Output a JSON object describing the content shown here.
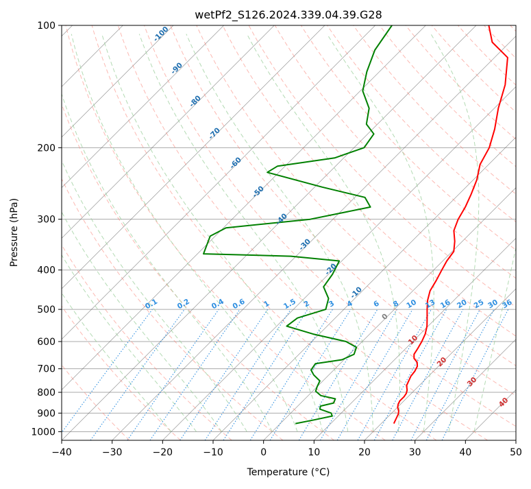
{
  "chart_data": {
    "type": "line",
    "diagram": "skew-T log-P",
    "title": "wetPf2_S126.2024.339.04.39.G28",
    "xlabel": "Temperature (°C)",
    "ylabel": "Pressure (hPa)",
    "xlim": [
      -40,
      50
    ],
    "ylim": [
      1050,
      100
    ],
    "y_scale": "log",
    "grid": true,
    "x_ticks": [
      -40,
      -30,
      -20,
      -10,
      0,
      10,
      20,
      30,
      40,
      50
    ],
    "x_tick_labels": [
      "−40",
      "−30",
      "−20",
      "−10",
      "0",
      "10",
      "20",
      "30",
      "40",
      "50"
    ],
    "y_ticks": [
      1000,
      900,
      800,
      700,
      600,
      500,
      400,
      300,
      200,
      100
    ],
    "y_tick_labels": [
      "1000",
      "900",
      "800",
      "700",
      "600",
      "500",
      "400",
      "300",
      "200",
      "100"
    ],
    "colors": {
      "temperature": "#ff0000",
      "dewpoint": "#008000",
      "dry_adiabat": "#fa8072",
      "moist_adiabat": "#9acd99",
      "mixing_ratio": "#1f77b4",
      "isotherm": "#555555",
      "isobar": "#aaaaaa",
      "frame": "#000000"
    },
    "series": [
      {
        "name": "temperature",
        "points": [
          [
            22.5,
            955
          ],
          [
            22.2,
            940
          ],
          [
            21.8,
            920
          ],
          [
            21.5,
            905
          ],
          [
            21.0,
            890
          ],
          [
            20.0,
            870
          ],
          [
            19.5,
            855
          ],
          [
            19.2,
            840
          ],
          [
            19.2,
            820
          ],
          [
            19.0,
            805
          ],
          [
            18.5,
            790
          ],
          [
            17.5,
            770
          ],
          [
            17.0,
            750
          ],
          [
            16.5,
            730
          ],
          [
            16.3,
            710
          ],
          [
            15.8,
            690
          ],
          [
            15.0,
            675
          ],
          [
            13.6,
            660
          ],
          [
            12.8,
            645
          ],
          [
            12.4,
            625
          ],
          [
            11.8,
            600
          ],
          [
            11.0,
            575
          ],
          [
            9.8,
            550
          ],
          [
            8.2,
            525
          ],
          [
            6.5,
            500
          ],
          [
            4.8,
            475
          ],
          [
            3.4,
            450
          ],
          [
            2.6,
            425
          ],
          [
            1.6,
            400
          ],
          [
            0.8,
            380
          ],
          [
            0.3,
            360
          ],
          [
            -1.5,
            340
          ],
          [
            -3.8,
            320
          ],
          [
            -5.2,
            300
          ],
          [
            -6.2,
            280
          ],
          [
            -7.6,
            260
          ],
          [
            -9.3,
            240
          ],
          [
            -11.7,
            220
          ],
          [
            -13.2,
            200
          ],
          [
            -15.8,
            180
          ],
          [
            -19.2,
            160
          ],
          [
            -22.5,
            140
          ],
          [
            -27.4,
            120
          ],
          [
            -33.5,
            110
          ],
          [
            -37.5,
            100
          ]
        ]
      },
      {
        "name": "dewpoint",
        "points": [
          [
            3.0,
            955
          ],
          [
            6.0,
            935
          ],
          [
            8.8,
            915
          ],
          [
            8.0,
            900
          ],
          [
            5.0,
            880
          ],
          [
            4.5,
            865
          ],
          [
            6.5,
            850
          ],
          [
            6.0,
            830
          ],
          [
            2.5,
            815
          ],
          [
            0.6,
            795
          ],
          [
            0.0,
            775
          ],
          [
            -0.6,
            750
          ],
          [
            -3.0,
            725
          ],
          [
            -4.5,
            705
          ],
          [
            -4.9,
            680
          ],
          [
            -0.4,
            665
          ],
          [
            0.9,
            645
          ],
          [
            0.0,
            620
          ],
          [
            -3.2,
            600
          ],
          [
            -11.2,
            575
          ],
          [
            -18.0,
            550
          ],
          [
            -17.5,
            525
          ],
          [
            -13.6,
            500
          ],
          [
            -15.2,
            470
          ],
          [
            -18.5,
            440
          ],
          [
            -19.2,
            410
          ],
          [
            -20.5,
            380
          ],
          [
            -31.0,
            370
          ],
          [
            -48.8,
            365
          ],
          [
            -51.0,
            330
          ],
          [
            -49.5,
            315
          ],
          [
            -34.5,
            300
          ],
          [
            -25.0,
            280
          ],
          [
            -28.0,
            265
          ],
          [
            -38.5,
            250
          ],
          [
            -52.3,
            230
          ],
          [
            -51.5,
            222
          ],
          [
            -41.8,
            212
          ],
          [
            -38.0,
            200
          ],
          [
            -38.8,
            185
          ],
          [
            -42.2,
            175
          ],
          [
            -44.8,
            160
          ],
          [
            -49.5,
            145
          ],
          [
            -52.5,
            130
          ],
          [
            -55.2,
            115
          ],
          [
            -56.7,
            100
          ]
        ]
      }
    ],
    "mixing_ratio_lines": {
      "unit": "g/kg",
      "labels": [
        "0.1",
        "0.2",
        "0.4",
        "0.6",
        "1",
        "1.5",
        "2",
        "3",
        "4",
        "6",
        "8",
        "10",
        "13",
        "16",
        "20",
        "25",
        "30",
        "36"
      ],
      "values": [
        0.1,
        0.2,
        0.4,
        0.6,
        1,
        1.5,
        2,
        3,
        4,
        6,
        8,
        10,
        13,
        16,
        20,
        25,
        30,
        36
      ]
    },
    "dry_adiabat_labels": {
      "labels": [
        "-100",
        "-90",
        "-80",
        "-70",
        "-60",
        "-50",
        "-40",
        "-30",
        "-20",
        "-10",
        "0",
        "10",
        "20",
        "30",
        "40"
      ],
      "values": [
        -100,
        -90,
        -80,
        -70,
        -60,
        -50,
        -40,
        -30,
        -20,
        -10,
        0,
        10,
        20,
        30,
        40
      ]
    }
  }
}
